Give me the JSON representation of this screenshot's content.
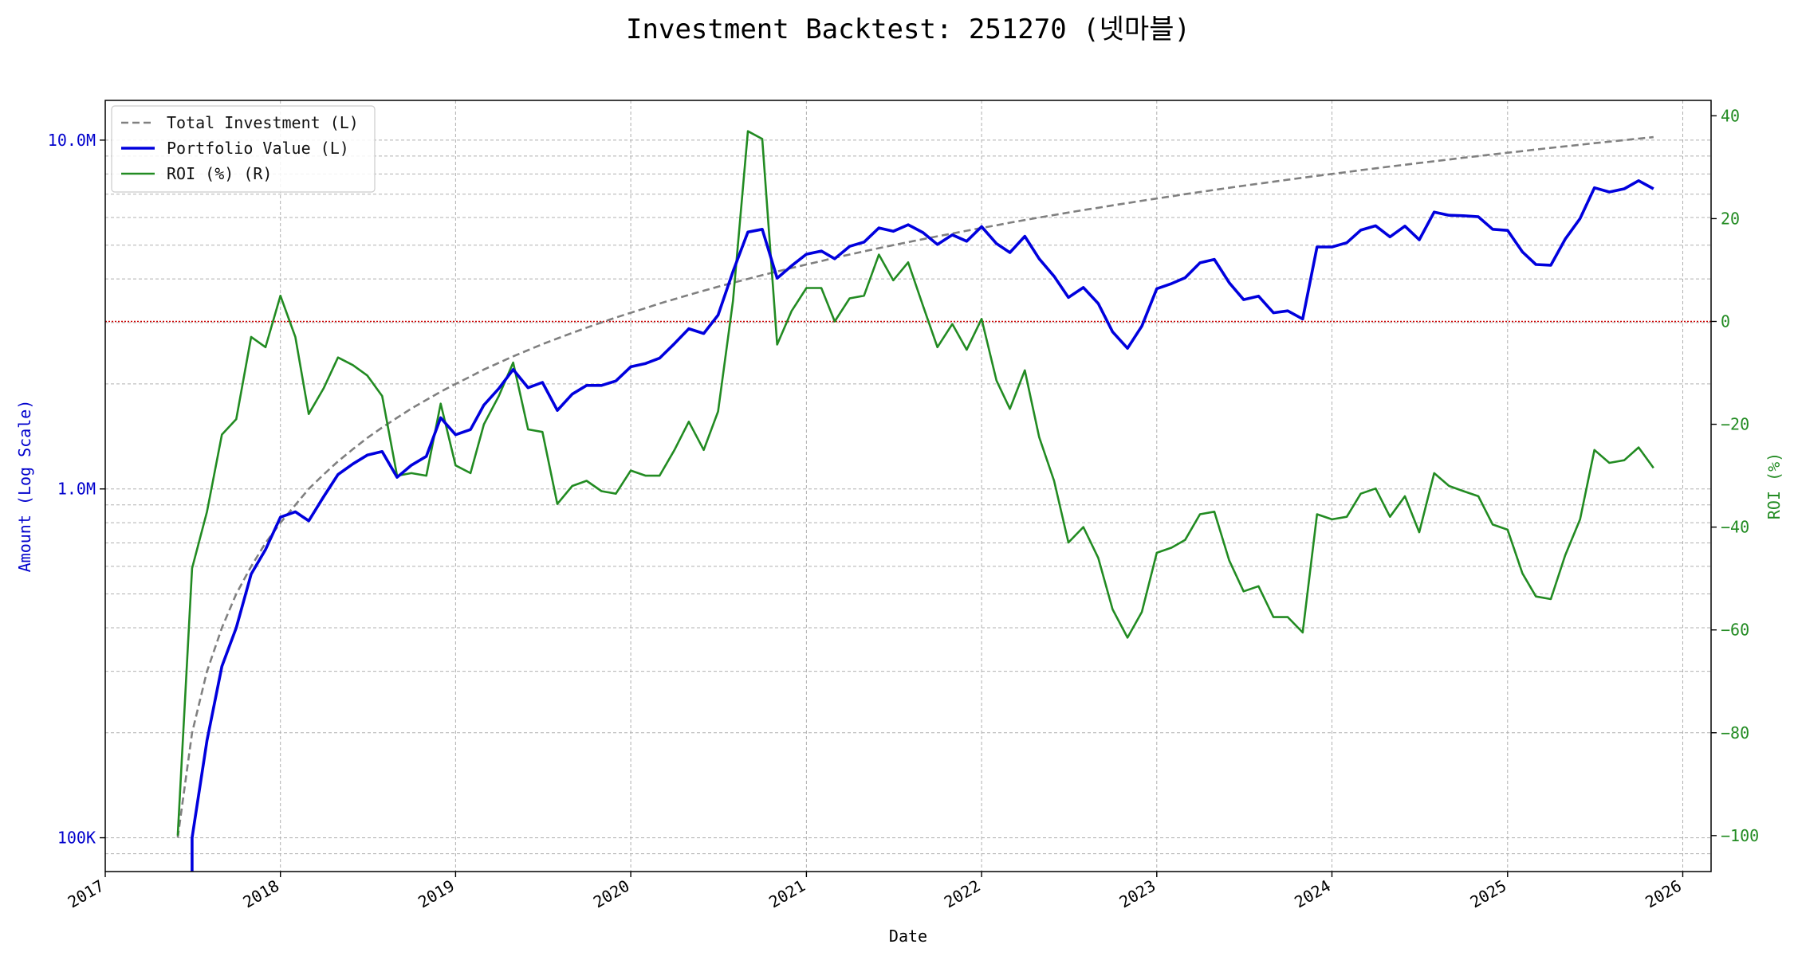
{
  "chart_data": {
    "type": "line",
    "title": "Investment Backtest: 251270 (넷마블)",
    "xlabel": "Date",
    "ylabel_left": "Amount (Log Scale)",
    "ylabel_right": "ROI (%)",
    "left_axis": {
      "scale": "log",
      "ylim": [
        80000,
        13000000
      ],
      "ticks": [
        100000,
        1000000,
        10000000
      ],
      "tick_labels": [
        "100K",
        "1.0M",
        "10.0M"
      ],
      "color": "#0000cc"
    },
    "right_axis": {
      "scale": "linear",
      "ylim": [
        -107,
        43
      ],
      "ticks": [
        -100,
        -80,
        -60,
        -40,
        -20,
        0,
        20,
        40
      ],
      "tick_labels": [
        "−100",
        "−80",
        "−60",
        "−40",
        "−20",
        "0",
        "20",
        "40"
      ],
      "color": "#228b22"
    },
    "x_axis": {
      "type": "date",
      "xlim": [
        "2017-01-01",
        "2026-03-01"
      ],
      "ticks": [
        "2017-01-01",
        "2018-01-01",
        "2019-01-01",
        "2020-01-01",
        "2021-01-01",
        "2022-01-01",
        "2023-01-01",
        "2024-01-01",
        "2025-01-01",
        "2026-01-01"
      ],
      "tick_labels": [
        "2017",
        "2018",
        "2019",
        "2020",
        "2021",
        "2022",
        "2023",
        "2024",
        "2025",
        "2026"
      ]
    },
    "grid": true,
    "legend_position": "upper-left",
    "reference_line": {
      "axis": "right",
      "value": 0,
      "color": "#cc0000",
      "style": "dotted"
    },
    "x": [
      "2017-06-01",
      "2017-07-01",
      "2017-08-01",
      "2017-09-01",
      "2017-10-01",
      "2017-11-01",
      "2017-12-01",
      "2018-01-01",
      "2018-02-01",
      "2018-03-01",
      "2018-04-01",
      "2018-05-01",
      "2018-06-01",
      "2018-07-01",
      "2018-08-01",
      "2018-09-01",
      "2018-10-01",
      "2018-11-01",
      "2018-12-01",
      "2019-01-01",
      "2019-02-01",
      "2019-03-01",
      "2019-04-01",
      "2019-05-01",
      "2019-06-01",
      "2019-07-01",
      "2019-08-01",
      "2019-09-01",
      "2019-10-01",
      "2019-11-01",
      "2019-12-01",
      "2020-01-01",
      "2020-02-01",
      "2020-03-01",
      "2020-04-01",
      "2020-05-01",
      "2020-06-01",
      "2020-07-01",
      "2020-08-01",
      "2020-09-01",
      "2020-10-01",
      "2020-11-01",
      "2020-12-01",
      "2021-01-01",
      "2021-02-01",
      "2021-03-01",
      "2021-04-01",
      "2021-05-01",
      "2021-06-01",
      "2021-07-01",
      "2021-08-01",
      "2021-09-01",
      "2021-10-01",
      "2021-11-01",
      "2021-12-01",
      "2022-01-01",
      "2022-02-01",
      "2022-03-01",
      "2022-04-01",
      "2022-05-01",
      "2022-06-01",
      "2022-07-01",
      "2022-08-01",
      "2022-09-01",
      "2022-10-01",
      "2022-11-01",
      "2022-12-01",
      "2023-01-01",
      "2023-02-01",
      "2023-03-01",
      "2023-04-01",
      "2023-05-01",
      "2023-06-01",
      "2023-07-01",
      "2023-08-01",
      "2023-09-01",
      "2023-10-01",
      "2023-11-01",
      "2023-12-01",
      "2024-01-01",
      "2024-02-01",
      "2024-03-01",
      "2024-04-01",
      "2024-05-01",
      "2024-06-01",
      "2024-07-01",
      "2024-08-01",
      "2024-09-01",
      "2024-10-01",
      "2024-11-01",
      "2024-12-01",
      "2025-01-01",
      "2025-02-01",
      "2025-03-01",
      "2025-04-01",
      "2025-05-01",
      "2025-06-01",
      "2025-07-01",
      "2025-08-01",
      "2025-09-01",
      "2025-10-01",
      "2025-11-01"
    ],
    "series": [
      {
        "name": "Total Investment (L)",
        "axis": "left",
        "color": "#808080",
        "style": "dashed",
        "values": [
          100000,
          200000,
          300000,
          400000,
          500000,
          600000,
          700000,
          800000,
          900000,
          1000000,
          1100000,
          1200000,
          1300000,
          1400000,
          1500000,
          1600000,
          1700000,
          1800000,
          1900000,
          2000000,
          2100000,
          2200000,
          2300000,
          2400000,
          2500000,
          2600000,
          2700000,
          2800000,
          2900000,
          3000000,
          3100000,
          3200000,
          3300000,
          3400000,
          3500000,
          3600000,
          3700000,
          3800000,
          3900000,
          4000000,
          4100000,
          4200000,
          4300000,
          4400000,
          4500000,
          4600000,
          4700000,
          4800000,
          4900000,
          5000000,
          5100000,
          5200000,
          5300000,
          5400000,
          5500000,
          5600000,
          5700000,
          5800000,
          5900000,
          6000000,
          6100000,
          6200000,
          6300000,
          6400000,
          6500000,
          6600000,
          6700000,
          6800000,
          6900000,
          7000000,
          7100000,
          7200000,
          7300000,
          7400000,
          7500000,
          7600000,
          7700000,
          7800000,
          7900000,
          8000000,
          8100000,
          8200000,
          8300000,
          8400000,
          8500000,
          8600000,
          8700000,
          8800000,
          8900000,
          9000000,
          9100000,
          9200000,
          9300000,
          9400000,
          9500000,
          9600000,
          9700000,
          9800000,
          9900000,
          10000000,
          10100000,
          10200000
        ]
      },
      {
        "name": "Portfolio Value (L)",
        "axis": "left",
        "color": "#0000dd",
        "style": "solid",
        "values": [
          null,
          100000,
          190000,
          310000,
          400000,
          570000,
          670000,
          830000,
          860000,
          810000,
          950000,
          1100000,
          1180000,
          1250000,
          1280000,
          1080000,
          1170000,
          1240000,
          1600000,
          1430000,
          1480000,
          1740000,
          1940000,
          2200000,
          1950000,
          2020000,
          1680000,
          1870000,
          1980000,
          1980000,
          2040000,
          2240000,
          2290000,
          2370000,
          2610000,
          2880000,
          2790000,
          3150000,
          4200000,
          5450000,
          5550000,
          4020000,
          4360000,
          4710000,
          4810000,
          4570000,
          4960000,
          5100000,
          5600000,
          5480000,
          5720000,
          5430000,
          5020000,
          5350000,
          5130000,
          5650000,
          5050000,
          4760000,
          5300000,
          4570000,
          4070000,
          3540000,
          3780000,
          3400000,
          2820000,
          2530000,
          2930000,
          3750000,
          3880000,
          4030000,
          4450000,
          4550000,
          3900000,
          3490000,
          3570000,
          3200000,
          3240000,
          3070000,
          4940000,
          4940000,
          5080000,
          5520000,
          5680000,
          5280000,
          5670000,
          5180000,
          6220000,
          6090000,
          6070000,
          6030000,
          5550000,
          5510000,
          4780000,
          4400000,
          4380000,
          5200000,
          5960000,
          7300000,
          7100000,
          7250000,
          7650000,
          7250000
        ]
      },
      {
        "name": "ROI (%) (R)",
        "axis": "right",
        "color": "#228b22",
        "style": "solid",
        "values": [
          -100,
          -48,
          -37,
          -22,
          -19,
          -3,
          -5,
          5,
          -3,
          -18,
          -13,
          -7,
          -8.5,
          -10.5,
          -14.5,
          -30,
          -29.5,
          -30,
          -16,
          -28,
          -29.5,
          -20,
          -14.5,
          -8,
          -21,
          -21.5,
          -35.5,
          -32,
          -31,
          -33,
          -33.5,
          -29,
          -30,
          -30,
          -25,
          -19.5,
          -25,
          -17.5,
          4,
          37,
          35.5,
          -4.5,
          2,
          6.5,
          6.5,
          0,
          4.5,
          5,
          13,
          8,
          11.5,
          3,
          -5,
          -0.5,
          -5.5,
          0.5,
          -11.5,
          -17,
          -9.5,
          -22.5,
          -31,
          -43,
          -40,
          -46,
          -56,
          -61.5,
          -56.5,
          -45,
          -44,
          -42.5,
          -37.5,
          -37,
          -46.5,
          -52.5,
          -51.5,
          -57.5,
          -57.5,
          -60.5,
          -37.5,
          -38.5,
          -38,
          -33.5,
          -32.5,
          -38,
          -34,
          -41,
          -29.5,
          -32,
          -33,
          -34,
          -39.5,
          -40.5,
          -49,
          -53.5,
          -54,
          -45.5,
          -38.5,
          -25,
          -27.5,
          -27,
          -24.5,
          -28.5
        ]
      }
    ]
  }
}
